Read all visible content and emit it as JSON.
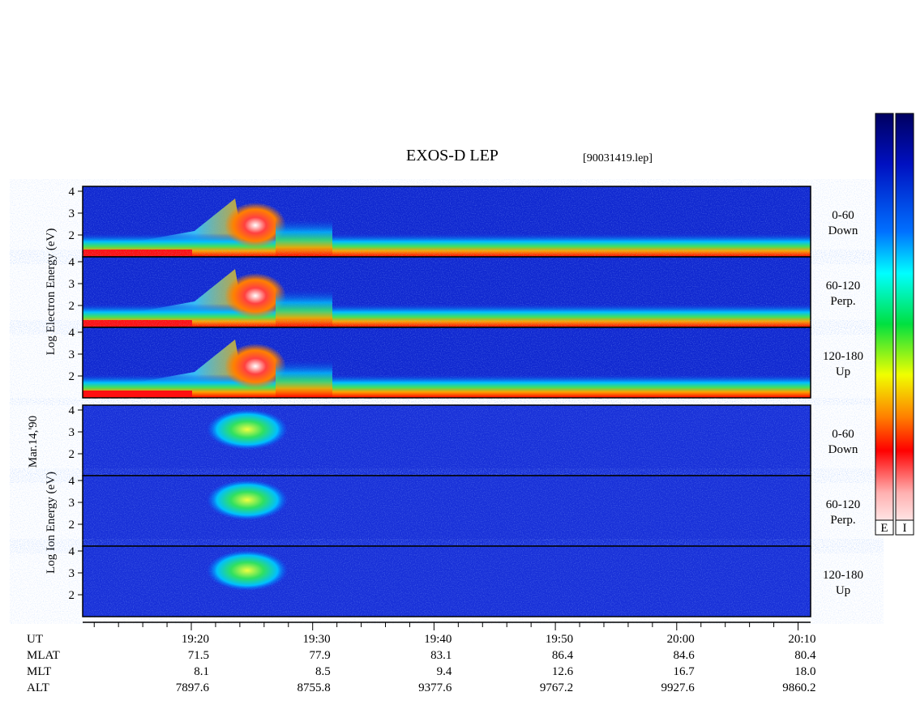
{
  "title": "EXOS-D LEP",
  "file": "[90031419.lep]",
  "date": "Mar.14,'90",
  "electron_axis_label": "Log  Electron  Energy (eV)",
  "ion_axis_label": "Log  Ion  Energy (eV)",
  "panels": [
    {
      "species": "electron",
      "angle": "0-60",
      "direction": "Down",
      "yticks": [
        "4",
        "3",
        "2"
      ]
    },
    {
      "species": "electron",
      "angle": "60-120",
      "direction": "Perp.",
      "yticks": [
        "4",
        "3",
        "2"
      ]
    },
    {
      "species": "electron",
      "angle": "120-180",
      "direction": "Up",
      "yticks": [
        "4",
        "3",
        "2"
      ]
    },
    {
      "species": "ion",
      "angle": "0-60",
      "direction": "Down",
      "yticks": [
        "4",
        "3",
        "2"
      ]
    },
    {
      "species": "ion",
      "angle": "60-120",
      "direction": "Perp.",
      "yticks": [
        "4",
        "3",
        "2"
      ]
    },
    {
      "species": "ion",
      "angle": "120-180",
      "direction": "Up",
      "yticks": [
        "4",
        "3",
        "2"
      ]
    }
  ],
  "orbit": {
    "row_labels": [
      "UT",
      "MLAT",
      "MLT",
      "ALT"
    ],
    "columns": [
      [
        "19:20",
        "71.5",
        "8.1",
        "7897.6"
      ],
      [
        "19:30",
        "77.9",
        "8.5",
        "8755.8"
      ],
      [
        "19:40",
        "83.1",
        "9.4",
        "9377.6"
      ],
      [
        "19:50",
        "86.4",
        "12.6",
        "9767.2"
      ],
      [
        "20:00",
        "84.6",
        "16.7",
        "9927.6"
      ],
      [
        "20:10",
        "80.4",
        "18.0",
        "9860.2"
      ]
    ]
  },
  "colorbar_labels": [
    "E",
    "I"
  ]
}
